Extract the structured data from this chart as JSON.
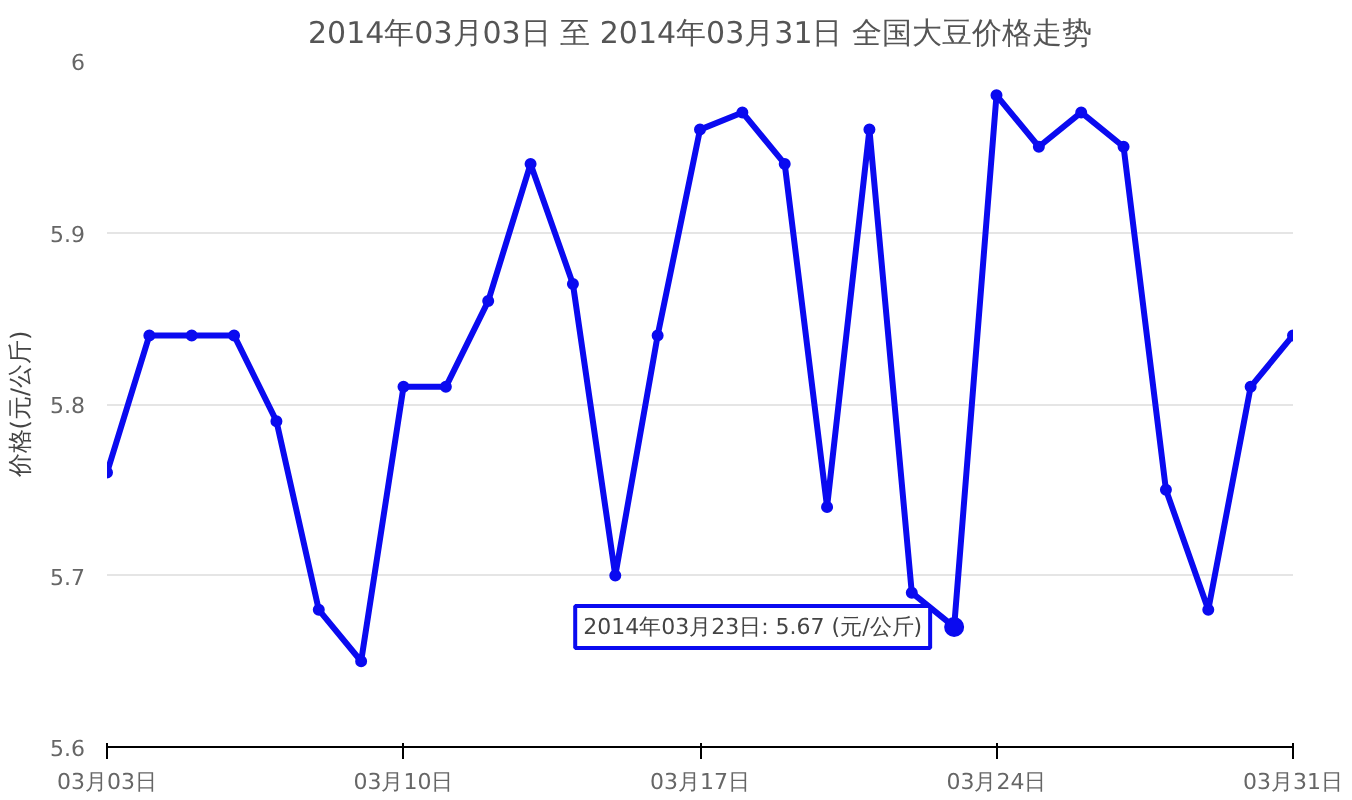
{
  "chart_data": {
    "type": "line",
    "title": "2014年03月03日 至 2014年03月31日 全国大豆价格走势",
    "ylabel": "价格(元/公斤)",
    "x": [
      "2014-03-03",
      "2014-03-04",
      "2014-03-05",
      "2014-03-06",
      "2014-03-07",
      "2014-03-08",
      "2014-03-09",
      "2014-03-10",
      "2014-03-11",
      "2014-03-12",
      "2014-03-13",
      "2014-03-14",
      "2014-03-15",
      "2014-03-16",
      "2014-03-17",
      "2014-03-18",
      "2014-03-19",
      "2014-03-20",
      "2014-03-21",
      "2014-03-22",
      "2014-03-23",
      "2014-03-24",
      "2014-03-25",
      "2014-03-26",
      "2014-03-27",
      "2014-03-28",
      "2014-03-29",
      "2014-03-30",
      "2014-03-31"
    ],
    "series": [
      {
        "color": "#0a0af0",
        "values": [
          5.76,
          5.84,
          5.84,
          5.84,
          5.79,
          5.68,
          5.65,
          5.81,
          5.81,
          5.86,
          5.94,
          5.87,
          5.7,
          5.84,
          5.96,
          5.97,
          5.94,
          5.74,
          5.96,
          5.69,
          5.67,
          5.98,
          5.95,
          5.97,
          5.95,
          5.75,
          5.68,
          5.81,
          5.84
        ]
      }
    ],
    "xlim": [
      "2014-03-03",
      "2014-03-31"
    ],
    "xticks": [
      {
        "value": "2014-03-03",
        "label": "03月03日"
      },
      {
        "value": "2014-03-10",
        "label": "03月10日"
      },
      {
        "value": "2014-03-17",
        "label": "03月17日"
      },
      {
        "value": "2014-03-24",
        "label": "03月24日"
      },
      {
        "value": "2014-03-31",
        "label": "03月31日"
      }
    ],
    "ylim": [
      5.6,
      6
    ],
    "yticks": [
      5.6,
      5.7,
      5.8,
      5.9,
      6
    ],
    "grid": "y",
    "marker": "circle",
    "line_style": "solid",
    "annotations": [
      {
        "text": "2014年03月23日: 5.67 (元/公斤)",
        "x": "2014-03-23",
        "y": 5.67
      }
    ]
  }
}
